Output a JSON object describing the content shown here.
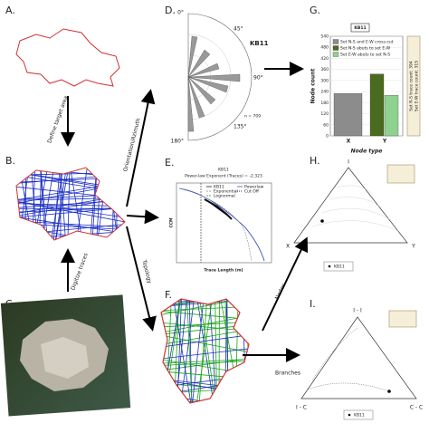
{
  "panels": {
    "a": {
      "label": "A."
    },
    "b": {
      "label": "B."
    },
    "c": {
      "label": "C."
    },
    "d": {
      "label": "D.",
      "site": "KB11",
      "angles": [
        "0°",
        "45°",
        "90°",
        "135°",
        "180°"
      ],
      "count": "n = 709"
    },
    "e": {
      "label": "E.",
      "title": "KB11",
      "subtitle": "Power-law Exponent (Traces) = -2.323",
      "xlabel": "Trace Length (m)",
      "ylabel": "CCM",
      "legend": [
        "KB11",
        "Powerlaw",
        "Exponential",
        "Cut Off",
        "Lognormal"
      ]
    },
    "f": {
      "label": "F."
    },
    "g": {
      "label": "G.",
      "title": "KB11",
      "ylabel": "Node count",
      "xlabel": "Node type",
      "yticks": [
        0,
        60,
        120,
        180,
        240,
        300,
        360,
        420,
        480,
        540
      ],
      "ylim": [
        0,
        540
      ],
      "categories": [
        "X",
        "Y"
      ],
      "series": [
        {
          "name": "Set N-S and E-W cross-cut",
          "color": "#8c8c8c",
          "values": [
            230,
            null
          ]
        },
        {
          "name": "Set N-S abuts to set E-W",
          "color": "#4a6b1f",
          "values": [
            null,
            335
          ]
        },
        {
          "name": "Set E-W abuts to set N-S",
          "color": "#8fd18f",
          "values": [
            null,
            220
          ]
        }
      ],
      "side_notes": [
        "Set N-S trace count: 394",
        "Set E-W trace count: 315"
      ]
    },
    "h": {
      "label": "H.",
      "vertices": [
        "I",
        "X",
        "Y"
      ],
      "legend": "KB11"
    },
    "i": {
      "label": "I.",
      "vertices": [
        "I - I",
        "I - C",
        "C - C"
      ],
      "legend": "KB11"
    }
  },
  "arrows": {
    "define": "Define target area",
    "digitize": "Digitize traces",
    "orientation": "Orientation/Azimuth",
    "topology": "Topology",
    "nodes": "Nodes",
    "branches": "Branches"
  }
}
